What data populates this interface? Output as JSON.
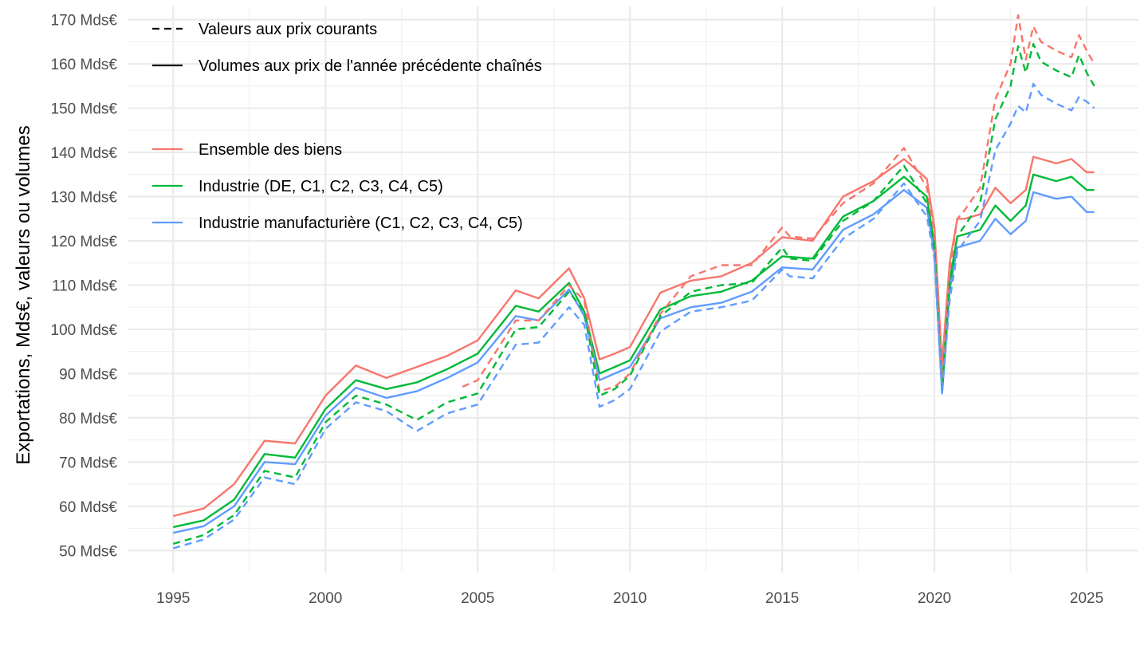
{
  "chart_data": {
    "type": "line",
    "title": "",
    "xlabel": "",
    "ylabel": "Exportations, Mds€, valeurs ou volumes",
    "xlim": [
      1993.5,
      2026.7
    ],
    "ylim": [
      45,
      173
    ],
    "xticks": [
      1995,
      2000,
      2005,
      2010,
      2015,
      2020,
      2025
    ],
    "xtick_labels": [
      "1995",
      "2000",
      "2005",
      "2010",
      "2015",
      "2020",
      "2025"
    ],
    "yticks": [
      50,
      60,
      70,
      80,
      90,
      100,
      110,
      120,
      130,
      140,
      150,
      160,
      170
    ],
    "ytick_labels": [
      "50 Mds€",
      "60 Mds€",
      "70 Mds€",
      "80 Mds€",
      "90 Mds€",
      "100 Mds€",
      "110 Mds€",
      "120 Mds€",
      "130 Mds€",
      "140 Mds€",
      "150 Mds€",
      "160 Mds€",
      "170 Mds€"
    ],
    "grid": true,
    "linetype_legend": [
      {
        "label": "Valeurs aux prix courants",
        "style": "dashed"
      },
      {
        "label": "Volumes aux prix de l'année précédente chaînés",
        "style": "solid"
      }
    ],
    "color_legend": [
      {
        "label": "Ensemble des biens",
        "color": "#F8766D"
      },
      {
        "label": "Industrie (DE, C1, C2, C3, C4, C5)",
        "color": "#00BA38"
      },
      {
        "label": "Industrie manufacturière (C1, C2, C3, C4, C5)",
        "color": "#619CFF"
      }
    ],
    "series": [
      {
        "name": "Ensemble des biens — volumes",
        "color": "#F8766D",
        "style": "solid",
        "x": [
          1995.0,
          1996.0,
          1997.0,
          1998.0,
          1999.0,
          2000.0,
          2001.0,
          2002.0,
          2003.0,
          2004.0,
          2005.0,
          2006.25,
          2007.0,
          2008.0,
          2008.5,
          2009.0,
          2009.5,
          2010.0,
          2011.0,
          2012.0,
          2013.0,
          2014.0,
          2015.0,
          2016.0,
          2017.0,
          2018.0,
          2019.0,
          2019.75,
          2020.0,
          2020.25,
          2020.5,
          2020.75,
          2021.0,
          2021.5,
          2022.0,
          2022.5,
          2023.0,
          2023.25,
          2024.0,
          2024.5,
          2025.0,
          2025.25
        ],
        "y": [
          57.8,
          59.5,
          65.0,
          74.8,
          74.2,
          85.0,
          91.8,
          89.0,
          91.5,
          94.0,
          97.5,
          108.8,
          107.0,
          113.8,
          107.0,
          93.2,
          94.5,
          96.0,
          108.3,
          111.0,
          112.0,
          115.0,
          120.8,
          120.0,
          130.0,
          133.5,
          138.5,
          134.0,
          123.0,
          92.0,
          115.0,
          125.0,
          125.0,
          126.0,
          132.0,
          128.5,
          131.5,
          139.0,
          137.5,
          138.5,
          135.5,
          135.5
        ]
      },
      {
        "name": "Industrie — volumes",
        "color": "#00BA38",
        "style": "solid",
        "x": [
          1995.0,
          1996.0,
          1997.0,
          1998.0,
          1999.0,
          2000.0,
          2001.0,
          2002.0,
          2003.0,
          2004.0,
          2005.0,
          2006.25,
          2007.0,
          2008.0,
          2008.5,
          2009.0,
          2009.5,
          2010.0,
          2011.0,
          2012.0,
          2013.0,
          2014.0,
          2015.0,
          2016.0,
          2017.0,
          2018.0,
          2019.0,
          2019.75,
          2020.0,
          2020.25,
          2020.5,
          2020.75,
          2021.0,
          2021.5,
          2022.0,
          2022.5,
          2023.0,
          2023.25,
          2024.0,
          2024.5,
          2025.0,
          2025.25
        ],
        "y": [
          55.3,
          56.8,
          61.5,
          71.8,
          71.0,
          82.0,
          88.5,
          86.5,
          88.0,
          91.0,
          94.5,
          105.3,
          104.0,
          110.5,
          104.0,
          90.0,
          91.5,
          93.0,
          104.5,
          107.5,
          108.5,
          111.0,
          116.5,
          116.0,
          125.5,
          129.0,
          134.5,
          130.0,
          119.0,
          87.0,
          111.0,
          121.0,
          121.5,
          122.5,
          128.0,
          124.5,
          128.0,
          135.0,
          133.5,
          134.5,
          131.5,
          131.5
        ]
      },
      {
        "name": "Industrie manufacturière — volumes",
        "color": "#619CFF",
        "style": "solid",
        "x": [
          1995.0,
          1996.0,
          1997.0,
          1998.0,
          1999.0,
          2000.0,
          2001.0,
          2002.0,
          2003.0,
          2004.0,
          2005.0,
          2006.25,
          2007.0,
          2008.0,
          2008.5,
          2009.0,
          2009.5,
          2010.0,
          2011.0,
          2012.0,
          2013.0,
          2014.0,
          2015.0,
          2016.0,
          2017.0,
          2018.0,
          2019.0,
          2019.75,
          2020.0,
          2020.25,
          2020.5,
          2020.75,
          2021.0,
          2021.5,
          2022.0,
          2022.5,
          2023.0,
          2023.25,
          2024.0,
          2024.5,
          2025.0,
          2025.25
        ],
        "y": [
          54.0,
          55.5,
          60.0,
          70.0,
          69.5,
          80.5,
          86.8,
          84.5,
          86.0,
          89.0,
          92.5,
          103.0,
          102.0,
          109.0,
          103.0,
          88.5,
          90.0,
          91.5,
          102.5,
          105.0,
          106.0,
          108.5,
          114.0,
          113.5,
          122.5,
          126.0,
          131.5,
          127.5,
          117.0,
          85.5,
          109.0,
          118.5,
          119.0,
          120.0,
          125.0,
          121.5,
          124.5,
          131.0,
          129.5,
          130.0,
          126.5,
          126.5
        ]
      },
      {
        "name": "Ensemble des biens — valeurs",
        "color": "#F8766D",
        "style": "dashed",
        "x": [
          2004.5,
          2005.0,
          2006.25,
          2007.0,
          2008.0,
          2008.5,
          2009.0,
          2009.5,
          2010.0,
          2011.0,
          2012.0,
          2013.0,
          2014.0,
          2015.0,
          2015.25,
          2016.0,
          2017.0,
          2018.0,
          2019.0,
          2019.75,
          2020.0,
          2020.25,
          2020.5,
          2020.75,
          2021.0,
          2021.5,
          2022.0,
          2022.5,
          2022.75,
          2023.0,
          2023.25,
          2023.5,
          2024.0,
          2024.5,
          2024.75,
          2025.0,
          2025.25
        ],
        "y": [
          87.0,
          88.5,
          102.0,
          102.0,
          110.0,
          106.5,
          86.0,
          87.0,
          90.0,
          103.5,
          112.0,
          114.5,
          114.5,
          123.0,
          121.0,
          120.5,
          128.5,
          133.0,
          141.0,
          132.0,
          122.0,
          88.0,
          113.0,
          125.0,
          127.0,
          132.0,
          152.0,
          160.0,
          171.0,
          161.0,
          168.5,
          165.0,
          163.0,
          161.5,
          166.5,
          163.0,
          160.0
        ]
      },
      {
        "name": "Industrie — valeurs",
        "color": "#00BA38",
        "style": "dashed",
        "x": [
          1995.0,
          1996.0,
          1997.0,
          1998.0,
          1999.0,
          2000.0,
          2001.0,
          2002.0,
          2003.0,
          2004.0,
          2005.0,
          2006.25,
          2007.0,
          2008.0,
          2008.5,
          2009.0,
          2009.5,
          2010.0,
          2011.0,
          2012.0,
          2013.0,
          2014.0,
          2015.0,
          2015.25,
          2016.0,
          2017.0,
          2018.0,
          2019.0,
          2019.75,
          2020.0,
          2020.25,
          2020.5,
          2020.75,
          2021.0,
          2021.5,
          2022.0,
          2022.5,
          2022.75,
          2023.0,
          2023.25,
          2023.5,
          2024.0,
          2024.5,
          2024.75,
          2025.0,
          2025.25
        ],
        "y": [
          51.5,
          53.5,
          58.0,
          68.0,
          66.5,
          79.0,
          85.0,
          83.0,
          79.5,
          83.5,
          85.5,
          100.0,
          100.5,
          108.5,
          104.0,
          85.0,
          86.5,
          89.5,
          103.0,
          108.5,
          110.0,
          110.5,
          118.5,
          116.0,
          115.5,
          124.5,
          129.0,
          137.0,
          128.5,
          118.5,
          86.0,
          109.5,
          121.0,
          123.5,
          128.5,
          147.5,
          155.0,
          164.0,
          158.0,
          164.5,
          160.5,
          158.5,
          157.0,
          162.0,
          158.0,
          155.0
        ]
      },
      {
        "name": "Industrie manufacturière — valeurs",
        "color": "#619CFF",
        "style": "dashed",
        "x": [
          1995.0,
          1996.0,
          1997.0,
          1998.0,
          1999.0,
          2000.0,
          2001.0,
          2002.0,
          2003.0,
          2004.0,
          2005.0,
          2006.25,
          2007.0,
          2008.0,
          2008.5,
          2009.0,
          2009.5,
          2010.0,
          2011.0,
          2012.0,
          2013.0,
          2014.0,
          2015.0,
          2015.25,
          2016.0,
          2017.0,
          2018.0,
          2019.0,
          2019.75,
          2020.0,
          2020.25,
          2020.5,
          2020.75,
          2021.0,
          2021.5,
          2022.0,
          2022.5,
          2022.75,
          2023.0,
          2023.25,
          2023.5,
          2024.0,
          2024.5,
          2024.75,
          2025.0,
          2025.25
        ],
        "y": [
          50.5,
          52.5,
          57.0,
          66.5,
          65.0,
          77.5,
          83.5,
          81.5,
          77.0,
          81.0,
          83.0,
          96.5,
          97.0,
          105.0,
          101.0,
          82.5,
          84.0,
          86.5,
          99.5,
          104.0,
          105.0,
          106.5,
          113.5,
          112.0,
          111.5,
          120.5,
          125.0,
          133.0,
          125.5,
          116.0,
          85.5,
          106.5,
          117.5,
          120.0,
          124.5,
          140.5,
          146.5,
          150.5,
          149.0,
          155.5,
          153.0,
          151.0,
          149.5,
          152.5,
          151.5,
          150.0
        ]
      }
    ]
  }
}
